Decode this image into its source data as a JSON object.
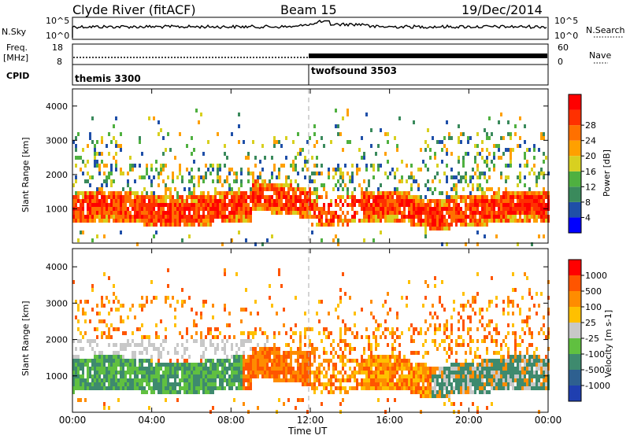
{
  "header": {
    "station": "Clyde River (fitACF)",
    "beam": "Beam 15",
    "date": "19/Dec/2014"
  },
  "top_panels": {
    "nsky_label": "N.Sky",
    "nsky_ticks": [
      "10^5",
      "10^0"
    ],
    "nsearch_label": "N.Search",
    "nsearch_ticks": [
      "10^5",
      "10^0"
    ],
    "freq_label_1": "Freq.",
    "freq_label_2": "[MHz]",
    "freq_ticks": [
      "18",
      "8"
    ],
    "nave_label": "Nave",
    "nave_ticks": [
      "60",
      "0"
    ],
    "cpid_label": "CPID",
    "cpid_segments": [
      {
        "name": "themis 3300",
        "start_hour": 0
      },
      {
        "name": "twofsound 3503",
        "start_hour": 12
      }
    ]
  },
  "chart_data": [
    {
      "type": "heatmap",
      "name": "power-panel",
      "ylabel": "Slant Range [km]",
      "yticks": [
        1000,
        2000,
        3000,
        4000
      ],
      "ylim": [
        0,
        4500
      ],
      "xlim": [
        0,
        24
      ],
      "colorbar": {
        "label": "Power [dB]",
        "ticks": [
          "4",
          "8",
          "12",
          "16",
          "20",
          "24",
          "28"
        ],
        "colors": [
          "#0000ff",
          "#1f4fa8",
          "#3a8a5c",
          "#4fb040",
          "#d8d020",
          "#ffa000",
          "#ff7000",
          "#ff3000",
          "#ff0000"
        ]
      }
    },
    {
      "type": "heatmap",
      "name": "velocity-panel",
      "ylabel": "Slant Range [km]",
      "yticks": [
        1000,
        2000,
        3000,
        4000
      ],
      "ylim": [
        0,
        4500
      ],
      "xlim": [
        0,
        24
      ],
      "colorbar": {
        "label": "Velocity [m s-1]",
        "ticks": [
          "1000",
          "500",
          "100",
          "25",
          "-25",
          "-100",
          "-500",
          "-1000"
        ],
        "colors": [
          "#1f3fb0",
          "#2e6090",
          "#3e8a6e",
          "#60c040",
          "#c8c8c8",
          "#ffc000",
          "#ff8c00",
          "#ff5500",
          "#ff0000"
        ]
      }
    }
  ],
  "xaxis": {
    "ticks": [
      "00:00",
      "04:00",
      "08:00",
      "12:00",
      "16:00",
      "20:00",
      "00:00"
    ],
    "label": "Time UT"
  }
}
